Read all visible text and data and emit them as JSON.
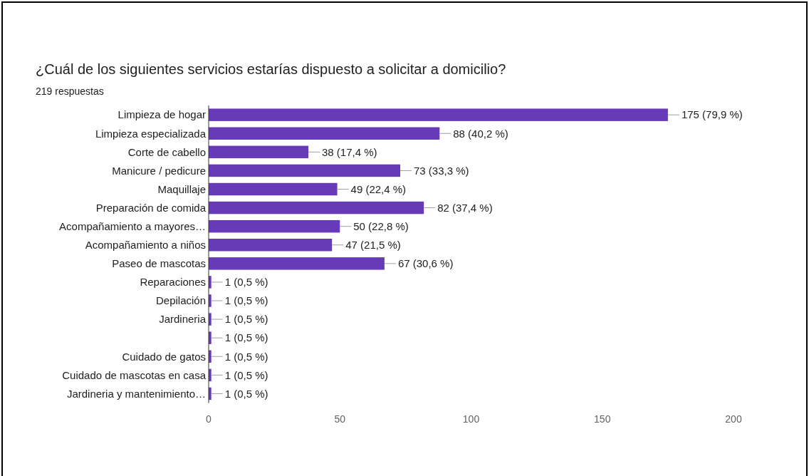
{
  "chart_data": {
    "type": "bar",
    "orientation": "horizontal",
    "title": "¿Cuál de los siguientes servicios estarías dispuesto a solicitar a domicilio?",
    "subtitle": "219 respuestas",
    "categories": [
      "Limpieza de hogar",
      "Limpieza especializada",
      "Corte de cabello",
      "Manicure / pedicure",
      "Maquillaje",
      "Preparación de comida",
      "Acompañamiento a mayores…",
      "Acompañamiento a niños",
      "Paseo de mascotas",
      "Reparaciones",
      "Depilación",
      "Jardineria",
      null,
      "Cuidado de gatos",
      "Cuidado de mascotas en casa",
      "Jardineria y mantenimiento…"
    ],
    "values": [
      175,
      88,
      38,
      73,
      49,
      82,
      50,
      47,
      67,
      1,
      1,
      1,
      1,
      1,
      1,
      1
    ],
    "value_labels": [
      "175 (79,9 %)",
      "88 (40,2 %)",
      "38 (17,4 %)",
      "73 (33,3 %)",
      "49 (22,4 %)",
      "82 (37,4 %)",
      "50 (22,8 %)",
      "47 (21,5 %)",
      "67 (30,6 %)",
      "1 (0,5 %)",
      "1 (0,5 %)",
      "1 (0,5 %)",
      "1 (0,5 %)",
      "1 (0,5 %)",
      "1 (0,5 %)",
      "1 (0,5 %)"
    ],
    "color": "#673ab7",
    "xlim": [
      0,
      200
    ],
    "xticks": [
      0,
      50,
      100,
      150,
      200
    ],
    "grid": false
  }
}
